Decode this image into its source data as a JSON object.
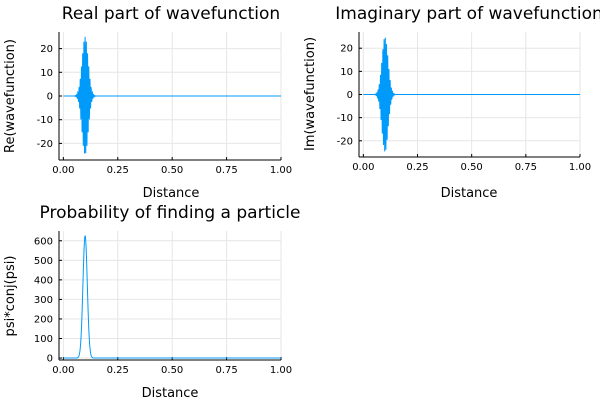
{
  "chart_data": [
    {
      "type": "line",
      "title": "Real part of wavefunction",
      "xlabel": "Distance",
      "ylabel": "Re(wavefunction)",
      "xlim": [
        -0.02,
        1.0
      ],
      "ylim": [
        -27,
        27
      ],
      "xticks": [
        0.0,
        0.25,
        0.5,
        0.75,
        1.0
      ],
      "xtick_labels": [
        "0.00",
        "0.25",
        "0.50",
        "0.75",
        "1.00"
      ],
      "yticks": [
        -20,
        -10,
        0,
        10,
        20
      ],
      "ytick_labels": [
        "-20",
        "-10",
        "0",
        "10",
        "20"
      ],
      "grid": true,
      "legend": "none",
      "color": "#009AFA",
      "packet": {
        "kind": "gaussian-cosine",
        "center": 0.1,
        "width": 0.02,
        "amplitude": 25,
        "wavenumber": 1130
      }
    },
    {
      "type": "line",
      "title": "Imaginary part of wavefunction",
      "xlabel": "Distance",
      "ylabel": "Im(wavefunction)",
      "xlim": [
        -0.02,
        1.0
      ],
      "ylim": [
        -27,
        27
      ],
      "xticks": [
        0.0,
        0.25,
        0.5,
        0.75,
        1.0
      ],
      "xtick_labels": [
        "0.00",
        "0.25",
        "0.50",
        "0.75",
        "1.00"
      ],
      "yticks": [
        -20,
        -10,
        0,
        10,
        20
      ],
      "ytick_labels": [
        "-20",
        "-10",
        "0",
        "10",
        "20"
      ],
      "grid": true,
      "legend": "none",
      "color": "#009AFA",
      "packet": {
        "kind": "gaussian-sine",
        "center": 0.1,
        "width": 0.02,
        "amplitude": 25,
        "wavenumber": 1130
      }
    },
    {
      "type": "line",
      "title": "Probability of finding a particle",
      "xlabel": "Distance",
      "ylabel": "psi*conj(psi)",
      "xlim": [
        -0.02,
        1.0
      ],
      "ylim": [
        -10,
        650
      ],
      "xticks": [
        0.0,
        0.25,
        0.5,
        0.75,
        1.0
      ],
      "xtick_labels": [
        "0.00",
        "0.25",
        "0.50",
        "0.75",
        "1.00"
      ],
      "yticks": [
        0,
        100,
        200,
        300,
        400,
        500,
        600
      ],
      "ytick_labels": [
        "0",
        "100",
        "200",
        "300",
        "400",
        "500",
        "600"
      ],
      "grid": true,
      "legend": "none",
      "color": "#009AFA",
      "packet": {
        "kind": "gaussian-squared",
        "center": 0.1,
        "width": 0.02,
        "amplitude": 625
      }
    }
  ]
}
